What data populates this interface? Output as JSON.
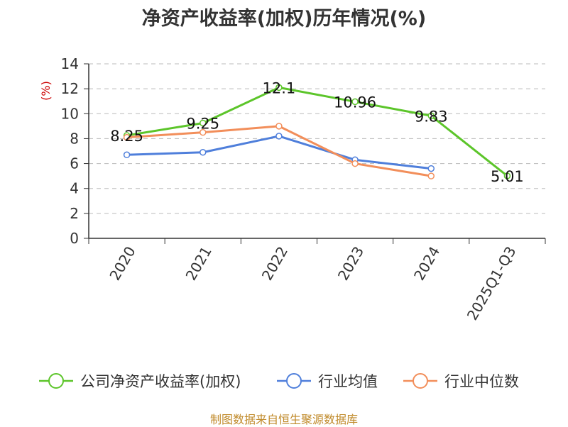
{
  "chart_data": {
    "type": "line",
    "title": "净资产收益率(加权)历年情况(%)",
    "ylabel": "(%)",
    "xlabel": "",
    "categories": [
      "2020",
      "2021",
      "2022",
      "2023",
      "2024",
      "2025Q1-Q3"
    ],
    "ylim": [
      0,
      14
    ],
    "yticks": [
      0,
      2,
      4,
      6,
      8,
      10,
      12,
      14
    ],
    "grid": true,
    "legend_position": "bottom",
    "series": [
      {
        "name": "公司净资产收益率(加权)",
        "color": "#5cc52a",
        "values": [
          8.25,
          9.25,
          12.1,
          10.96,
          9.83,
          5.01
        ],
        "labels": [
          "8.25",
          "9.25",
          "12.1",
          "10.96",
          "9.83",
          "5.01"
        ]
      },
      {
        "name": "行业均值",
        "color": "#4f7fdb",
        "values": [
          6.7,
          6.9,
          8.2,
          6.3,
          5.6,
          null
        ]
      },
      {
        "name": "行业中位数",
        "color": "#f28e5a",
        "values": [
          8.1,
          8.5,
          9.0,
          6.0,
          5.0,
          null
        ]
      }
    ]
  },
  "source_note": "制图数据来自恒生聚源数据库"
}
